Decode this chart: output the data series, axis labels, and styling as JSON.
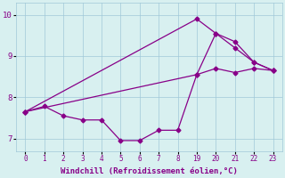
{
  "bg_color": "#d8f0f0",
  "line_color": "#880088",
  "grid_color": "#a0c8d8",
  "xlabel": "Windchill (Refroidissement éolien,°C)",
  "xlim": [
    -0.5,
    13.5
  ],
  "ylim": [
    6.7,
    10.3
  ],
  "xtick_pos": [
    0,
    1,
    2,
    3,
    4,
    5,
    6,
    7,
    8,
    9,
    10,
    11,
    12,
    13
  ],
  "xtick_labels": [
    "0",
    "1",
    "2",
    "3",
    "4",
    "5",
    "6",
    "7",
    "8",
    "19",
    "20",
    "21",
    "22",
    "23"
  ],
  "yticks": [
    7,
    8,
    9,
    10
  ],
  "line1_x": [
    0,
    1,
    2,
    3,
    4,
    5,
    6,
    7,
    8,
    9,
    10,
    11,
    12,
    13
  ],
  "line1_y": [
    7.65,
    7.78,
    7.55,
    7.45,
    7.45,
    6.95,
    6.95,
    7.2,
    7.2,
    8.55,
    9.55,
    9.35,
    8.85,
    8.65
  ],
  "line2_x": [
    0,
    9,
    10,
    11,
    12,
    13
  ],
  "line2_y": [
    7.65,
    9.9,
    9.55,
    9.2,
    8.85,
    8.65
  ],
  "line3_x": [
    0,
    9,
    10,
    11,
    12,
    13
  ],
  "line3_y": [
    7.65,
    8.55,
    8.7,
    8.6,
    8.7,
    8.65
  ],
  "markersize": 2.5,
  "linewidth": 0.9
}
